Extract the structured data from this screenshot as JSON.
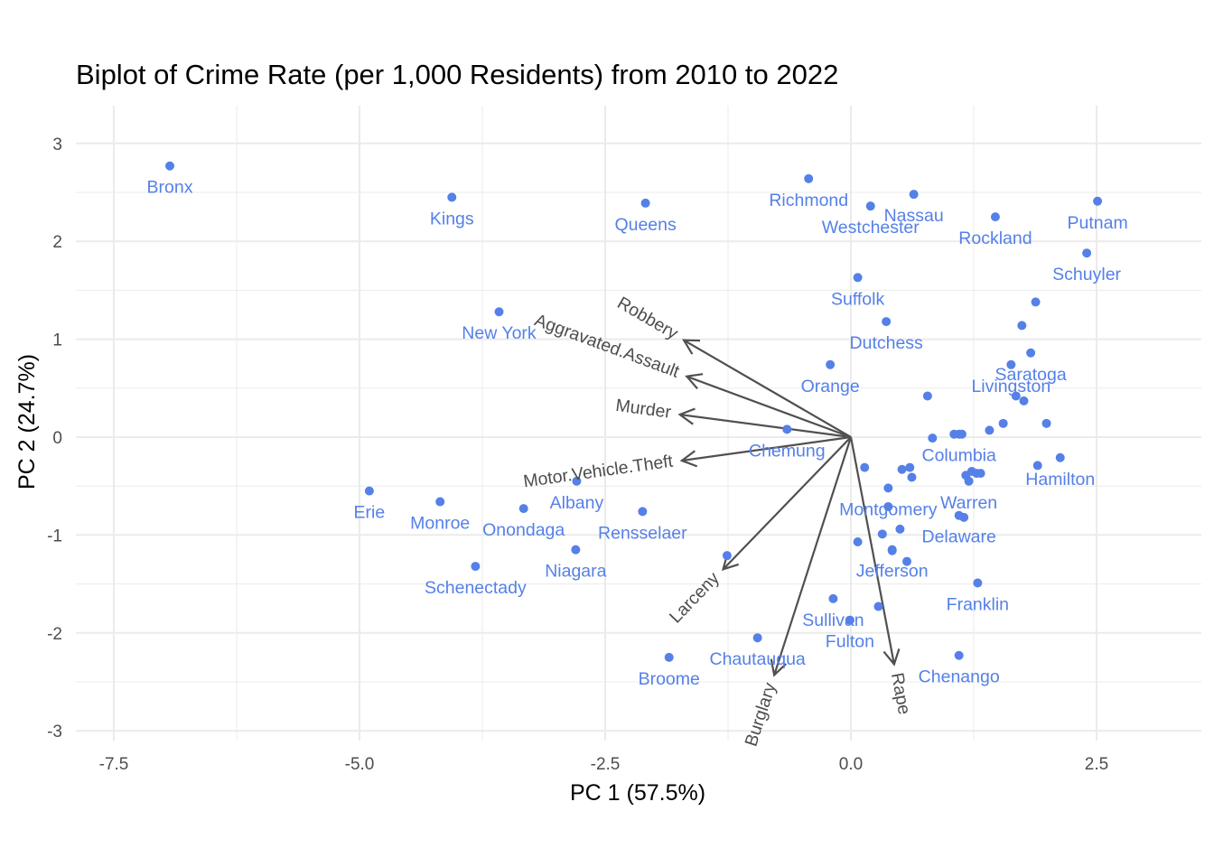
{
  "chart_data": {
    "type": "scatter",
    "title": "Biplot of Crime Rate (per 1,000 Residents) from 2010 to 2022",
    "xlabel": "PC 1 (57.5%)",
    "ylabel": "PC 2 (24.7%)",
    "xlim": [
      -8.0,
      3.5
    ],
    "ylim": [
      -3.1,
      3.35
    ],
    "x_ticks": [
      -7.5,
      -5.0,
      -2.5,
      0.0,
      2.5
    ],
    "x_tick_labels": [
      "-7.5",
      "-5.0",
      "-2.5",
      "0.0",
      "2.5"
    ],
    "y_ticks": [
      -3,
      -2,
      -1,
      0,
      1,
      2,
      3
    ],
    "y_tick_labels": [
      "-3",
      "-2",
      "-1",
      "0",
      "1",
      "2",
      "3"
    ],
    "grid": true,
    "point_color": "#5580E8",
    "arrow_color": "#505050",
    "points": [
      {
        "x": -6.93,
        "y": 2.77,
        "label": "Bronx"
      },
      {
        "x": -4.06,
        "y": 2.45,
        "label": "Kings"
      },
      {
        "x": -2.09,
        "y": 2.39,
        "label": "Queens"
      },
      {
        "x": -0.43,
        "y": 2.64,
        "label": "Richmond"
      },
      {
        "x": 0.64,
        "y": 2.48,
        "label": "Nassau"
      },
      {
        "x": 0.2,
        "y": 2.36,
        "label": "Westchester"
      },
      {
        "x": 1.47,
        "y": 2.25,
        "label": "Rockland"
      },
      {
        "x": 2.51,
        "y": 2.41,
        "label": "Putnam"
      },
      {
        "x": 2.4,
        "y": 1.88,
        "label": "Schuyler"
      },
      {
        "x": 0.07,
        "y": 1.63,
        "label": "Suffolk"
      },
      {
        "x": 0.36,
        "y": 1.18,
        "label": "Dutchess"
      },
      {
        "x": 1.83,
        "y": 0.86,
        "label": "Saratoga"
      },
      {
        "x": -3.58,
        "y": 1.28,
        "label": "New York"
      },
      {
        "x": -0.21,
        "y": 0.74,
        "label": "Orange"
      },
      {
        "x": 1.63,
        "y": 0.74,
        "label": "Livingston"
      },
      {
        "x": -0.65,
        "y": 0.08,
        "label": "Chemung"
      },
      {
        "x": 1.1,
        "y": 0.03,
        "label": "Columbia"
      },
      {
        "x": 2.13,
        "y": -0.21,
        "label": "Hamilton"
      },
      {
        "x": 0.38,
        "y": -0.52,
        "label": "Montgomery"
      },
      {
        "x": 1.2,
        "y": -0.45,
        "label": "Warren"
      },
      {
        "x": -4.9,
        "y": -0.55,
        "label": "Erie"
      },
      {
        "x": -4.18,
        "y": -0.66,
        "label": "Monroe"
      },
      {
        "x": -2.79,
        "y": -0.45,
        "label": "Albany"
      },
      {
        "x": -3.33,
        "y": -0.73,
        "label": "Onondaga"
      },
      {
        "x": -2.12,
        "y": -0.76,
        "label": "Rensselaer"
      },
      {
        "x": 1.1,
        "y": -0.8,
        "label": "Delaware"
      },
      {
        "x": -2.8,
        "y": -1.15,
        "label": "Niagara"
      },
      {
        "x": -3.82,
        "y": -1.32,
        "label": "Schenectady"
      },
      {
        "x": 0.42,
        "y": -1.15,
        "label": "Jefferson"
      },
      {
        "x": 1.29,
        "y": -1.49,
        "label": "Franklin"
      },
      {
        "x": -0.18,
        "y": -1.65,
        "label": "Sullivan"
      },
      {
        "x": -0.01,
        "y": -1.87,
        "label": "Fulton"
      },
      {
        "x": -0.95,
        "y": -2.05,
        "label": "Chautauqua"
      },
      {
        "x": -1.85,
        "y": -2.25,
        "label": "Broome"
      },
      {
        "x": 1.1,
        "y": -2.23,
        "label": "Chenango"
      },
      {
        "x": 1.88,
        "y": 1.38
      },
      {
        "x": 1.74,
        "y": 1.14
      },
      {
        "x": 0.78,
        "y": 0.42
      },
      {
        "x": 1.68,
        "y": 0.42
      },
      {
        "x": 1.76,
        "y": 0.37
      },
      {
        "x": 1.99,
        "y": 0.14
      },
      {
        "x": 1.55,
        "y": 0.14
      },
      {
        "x": 1.41,
        "y": 0.07
      },
      {
        "x": 0.83,
        "y": -0.01
      },
      {
        "x": 1.05,
        "y": 0.03
      },
      {
        "x": 1.13,
        "y": 0.03
      },
      {
        "x": 0.14,
        "y": -0.31
      },
      {
        "x": 0.52,
        "y": -0.33
      },
      {
        "x": 0.6,
        "y": -0.31
      },
      {
        "x": 0.62,
        "y": -0.41
      },
      {
        "x": 1.23,
        "y": -0.35
      },
      {
        "x": 1.28,
        "y": -0.37
      },
      {
        "x": 1.32,
        "y": -0.37
      },
      {
        "x": 1.17,
        "y": -0.39
      },
      {
        "x": 1.9,
        "y": -0.29
      },
      {
        "x": 0.38,
        "y": -0.71
      },
      {
        "x": 1.15,
        "y": -0.82
      },
      {
        "x": 0.5,
        "y": -0.94
      },
      {
        "x": 0.32,
        "y": -0.99
      },
      {
        "x": 0.07,
        "y": -1.07
      },
      {
        "x": 0.42,
        "y": -1.16
      },
      {
        "x": 0.57,
        "y": -1.27
      },
      {
        "x": -1.26,
        "y": -1.21
      },
      {
        "x": 0.28,
        "y": -1.73
      },
      {
        "x": -0.01,
        "y": -1.87
      }
    ],
    "loadings": [
      {
        "name": "Robbery",
        "x": -1.7,
        "y": 0.99
      },
      {
        "name": "Aggravated.Assault",
        "x": -1.67,
        "y": 0.62
      },
      {
        "name": "Murder",
        "x": -1.74,
        "y": 0.23
      },
      {
        "name": "Motor.Vehicle.Theft",
        "x": -1.72,
        "y": -0.24
      },
      {
        "name": "Larceny",
        "x": -1.3,
        "y": -1.35
      },
      {
        "name": "Burglary",
        "x": -0.78,
        "y": -2.43
      },
      {
        "name": "Rape",
        "x": 0.44,
        "y": -2.32
      }
    ]
  }
}
